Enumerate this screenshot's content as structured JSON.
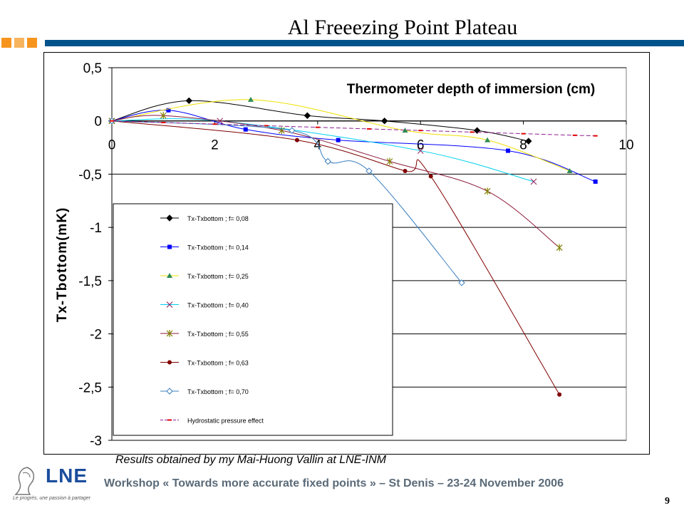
{
  "slide": {
    "title": "Al Freeezing Point Plateau",
    "credit": "Results obtained by my Mai-Huong Vallin at LNE-INM",
    "footer": "Workshop « Towards more accurate fixed points » – St Denis – 23-24 November 2006",
    "page_number": "9",
    "logo_text": "LNE",
    "logo_tagline": "Le progrès, une passion à partager",
    "colors": {
      "accent_bar": "#00528a",
      "squares": [
        "#f7941d",
        "#f7b45e",
        "#f7941d"
      ]
    }
  },
  "chart_data": {
    "type": "line",
    "title": "Thermometer depth of immersion (cm)",
    "xlabel": "",
    "ylabel": "Tx-Tbottom(mK)",
    "xlim": [
      0,
      10
    ],
    "ylim": [
      -3,
      0.5
    ],
    "xticks": [
      "0",
      "2",
      "4",
      "6",
      "8",
      "10"
    ],
    "yticks": [
      "0,5",
      "0",
      "-0,5",
      "-1",
      "-1,5",
      "-2",
      "-2,5",
      "-3"
    ],
    "grid": true,
    "legend_position": "lower-left",
    "series": [
      {
        "name": "Tx-Txbottom ; f= 0,08",
        "color": "#000000",
        "marker": "diamond-filled",
        "x": [
          0,
          1.5,
          3.8,
          5.3,
          7.1,
          8.1
        ],
        "y": [
          0,
          0.19,
          0.05,
          0.0,
          -0.09,
          -0.19
        ]
      },
      {
        "name": "Tx-Txbottom ; f= 0,14",
        "color": "#0000ff",
        "marker": "square-filled",
        "x": [
          0,
          1.1,
          2.6,
          4.4,
          7.7,
          9.4
        ],
        "y": [
          0,
          0.1,
          -0.08,
          -0.18,
          -0.28,
          -0.57
        ]
      },
      {
        "name": "Tx-Txbottom ; f= 0,25",
        "color": "#f0e000",
        "marker": "triangle-filled",
        "markerColor": "#2e8b57",
        "x": [
          0,
          2.7,
          5.7,
          7.3,
          8.9
        ],
        "y": [
          0,
          0.2,
          -0.09,
          -0.18,
          -0.47
        ]
      },
      {
        "name": "Tx-Txbottom ; f= 0,40",
        "color": "#00d0f0",
        "marker": "x",
        "markerColor": "#8b1a5a",
        "x": [
          0,
          2.1,
          6.0,
          8.2
        ],
        "y": [
          0,
          0.0,
          -0.28,
          -0.57
        ]
      },
      {
        "name": "Tx-Txbottom ; f= 0,55",
        "color": "#8b1a3a",
        "marker": "star",
        "markerColor": "#808000",
        "x": [
          0,
          1.0,
          3.3,
          5.4,
          7.3,
          8.7
        ],
        "y": [
          0,
          0.05,
          -0.09,
          -0.38,
          -0.66,
          -1.19
        ]
      },
      {
        "name": "Tx-Txbottom ; f= 0,63",
        "color": "#800000",
        "marker": "circle-filled",
        "x": [
          0,
          3.6,
          5.7,
          6.2,
          8.7
        ],
        "y": [
          0,
          -0.18,
          -0.47,
          -0.52,
          -2.57
        ]
      },
      {
        "name": "Tx-Txbottom ; f= 0,70",
        "color": "#3a7fc0",
        "marker": "diamond-open",
        "x": [
          0,
          3.5,
          4.2,
          5.0,
          6.8
        ],
        "y": [
          0,
          -0.09,
          -0.38,
          -0.47,
          -1.52
        ]
      },
      {
        "name": "Hydrostatic pressure effect",
        "color": "#8b2090",
        "marker": "dash",
        "markerColor": "#e00000",
        "dashed": true,
        "x": [
          0,
          1,
          2,
          3,
          4,
          5,
          6,
          7,
          8,
          9,
          9.4
        ],
        "y": [
          0,
          -0.015,
          -0.03,
          -0.045,
          -0.06,
          -0.075,
          -0.09,
          -0.105,
          -0.12,
          -0.135,
          -0.14
        ]
      }
    ]
  }
}
